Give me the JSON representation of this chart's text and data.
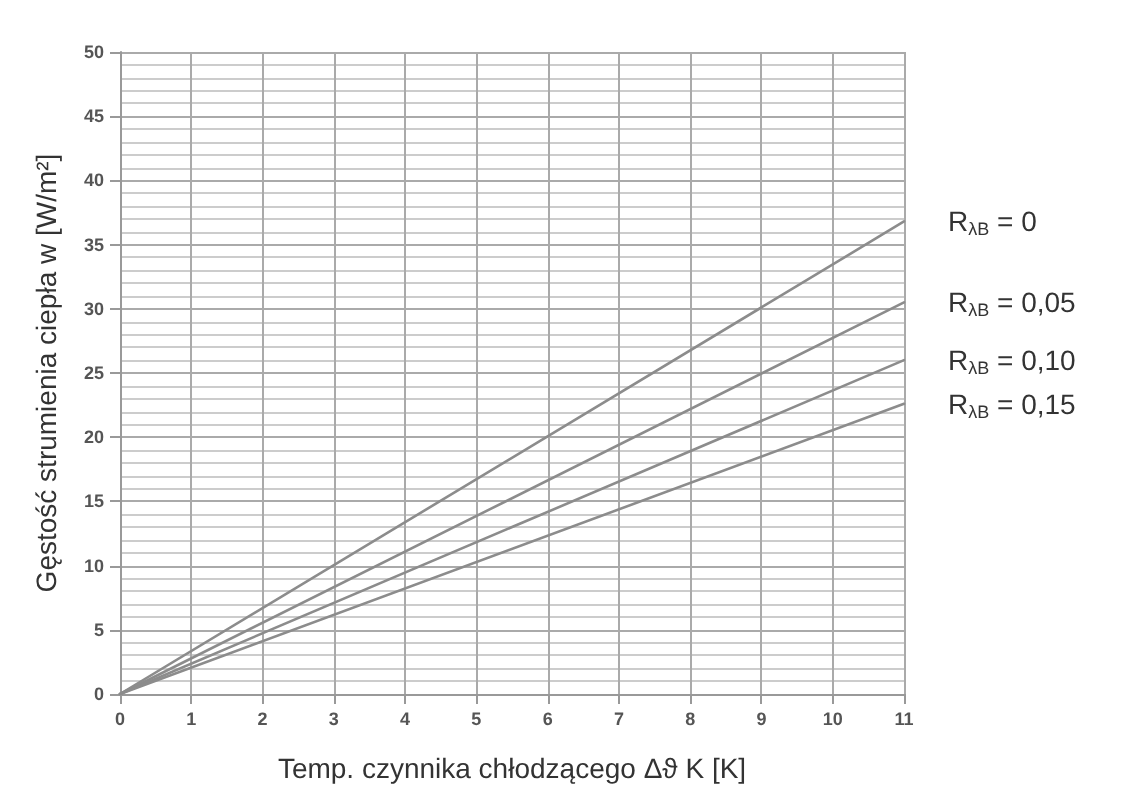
{
  "chart_data": {
    "type": "line",
    "xlabel": "Temp. czynnika chłodzącego Δϑ K [K]",
    "ylabel": "Gęstość strumienia ciepła w [W/m²]",
    "x": [
      0,
      11
    ],
    "series": [
      {
        "name": "R$_{λB}$ = 0",
        "color": "#8c8c8c",
        "values": [
          0,
          36.8
        ]
      },
      {
        "name": "R$_{λB}$ = 0,05",
        "color": "#8c8c8c",
        "values": [
          0,
          30.5
        ]
      },
      {
        "name": "R$_{λB}$ = 0,10",
        "color": "#8c8c8c",
        "values": [
          0,
          26
        ]
      },
      {
        "name": "R$_{λB}$ = 0,15",
        "color": "#8c8c8c",
        "values": [
          0,
          22.6
        ]
      }
    ],
    "xlim": [
      0,
      11
    ],
    "xticks": [
      0,
      1,
      2,
      3,
      4,
      5,
      6,
      7,
      8,
      9,
      10,
      11
    ],
    "ylim": [
      0,
      50
    ],
    "yticks": [
      0,
      5,
      10,
      15,
      20,
      25,
      30,
      35,
      40,
      45,
      50
    ],
    "grid": true,
    "marker": "none",
    "line_style": "solid",
    "legend": false
  }
}
